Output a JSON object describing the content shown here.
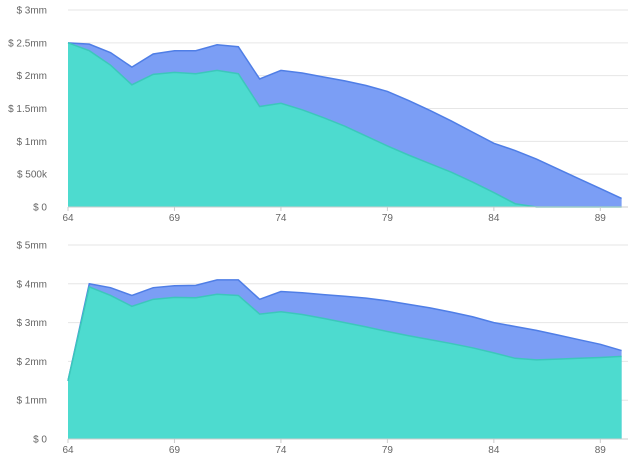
{
  "colors": {
    "upper_series": "#7b9ef5",
    "upper_stroke": "#4f7ee6",
    "lower_series": "#4ddbcf",
    "lower_stroke": "#3cc7bb",
    "grid": "#e6e6e6",
    "tick_text": "#666666"
  },
  "chart_data": [
    {
      "type": "area",
      "stacked": false,
      "x": [
        64,
        65,
        66,
        67,
        68,
        69,
        70,
        71,
        72,
        73,
        74,
        75,
        76,
        77,
        78,
        79,
        80,
        81,
        82,
        83,
        84,
        85,
        86,
        87,
        88,
        89,
        90
      ],
      "xlim": [
        64,
        90.3
      ],
      "x_ticks": [
        64,
        69,
        74,
        79,
        84,
        89
      ],
      "x_tick_labels": [
        "64",
        "69",
        "74",
        "79",
        "84",
        "89"
      ],
      "ylim": [
        0,
        3000000
      ],
      "y_ticks": [
        0,
        500000,
        1000000,
        1500000,
        2000000,
        2500000,
        3000000
      ],
      "y_tick_labels": [
        "$ 0",
        "$ 500k",
        "$ 1mm",
        "$ 1.5mm",
        "$ 2mm",
        "$ 2.5mm",
        "$ 3mm"
      ],
      "grid": true,
      "series": [
        {
          "values": [
            2500000,
            2480000,
            2350000,
            2130000,
            2330000,
            2380000,
            2380000,
            2470000,
            2440000,
            1950000,
            2080000,
            2040000,
            1980000,
            1920000,
            1850000,
            1760000,
            1620000,
            1470000,
            1310000,
            1140000,
            970000,
            860000,
            730000,
            580000,
            430000,
            280000,
            130000
          ]
        },
        {
          "values": [
            2500000,
            2380000,
            2160000,
            1860000,
            2020000,
            2050000,
            2030000,
            2080000,
            2030000,
            1530000,
            1580000,
            1480000,
            1360000,
            1230000,
            1080000,
            930000,
            790000,
            660000,
            530000,
            380000,
            220000,
            50000,
            0,
            0,
            0,
            0,
            0
          ]
        }
      ]
    },
    {
      "type": "area",
      "stacked": false,
      "x": [
        64,
        65,
        66,
        67,
        68,
        69,
        70,
        71,
        72,
        73,
        74,
        75,
        76,
        77,
        78,
        79,
        80,
        81,
        82,
        83,
        84,
        85,
        86,
        87,
        88,
        89,
        90
      ],
      "xlim": [
        64,
        90.3
      ],
      "x_ticks": [
        64,
        69,
        74,
        79,
        84,
        89
      ],
      "x_tick_labels": [
        "64",
        "69",
        "74",
        "79",
        "84",
        "89"
      ],
      "ylim": [
        0,
        5000000
      ],
      "y_ticks": [
        0,
        1000000,
        2000000,
        3000000,
        4000000,
        5000000
      ],
      "y_tick_labels": [
        "$ 0",
        "$ 1mm",
        "$ 2mm",
        "$ 3mm",
        "$ 4mm",
        "$ 5mm"
      ],
      "grid": true,
      "series": [
        {
          "values": [
            1500000,
            4000000,
            3900000,
            3700000,
            3900000,
            3950000,
            3960000,
            4100000,
            4100000,
            3600000,
            3800000,
            3770000,
            3720000,
            3680000,
            3630000,
            3560000,
            3470000,
            3380000,
            3270000,
            3150000,
            3000000,
            2900000,
            2800000,
            2680000,
            2560000,
            2440000,
            2280000
          ]
        },
        {
          "values": [
            1500000,
            3920000,
            3700000,
            3420000,
            3600000,
            3650000,
            3640000,
            3730000,
            3700000,
            3220000,
            3280000,
            3210000,
            3110000,
            3000000,
            2890000,
            2770000,
            2660000,
            2560000,
            2460000,
            2350000,
            2220000,
            2080000,
            2040000,
            2060000,
            2080000,
            2100000,
            2130000
          ]
        }
      ]
    }
  ]
}
